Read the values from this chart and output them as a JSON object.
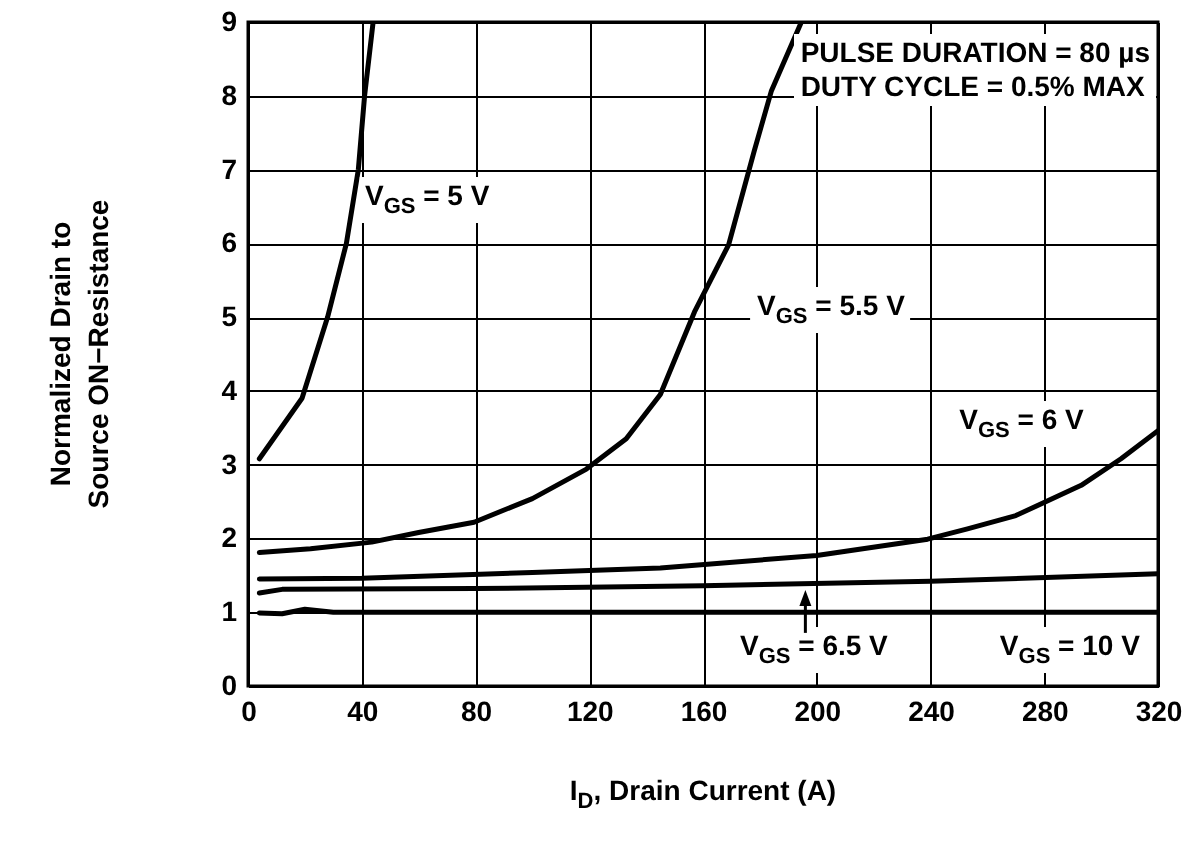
{
  "chart_data": {
    "type": "line",
    "xlabel": "I$_{D}$, Drain Current (A)",
    "ylabel": "Normalized Drain to\nSource ON−Resistance",
    "annotations": [
      "PULSE DURATION = 80 µs\nDUTY CYCLE = 0.5% MAX"
    ],
    "xlim": [
      0,
      320
    ],
    "xticks": [
      0,
      40,
      80,
      120,
      160,
      200,
      240,
      280,
      320
    ],
    "ylim": [
      0,
      9
    ],
    "yticks": [
      0,
      1,
      2,
      3,
      4,
      5,
      6,
      7,
      8,
      9
    ],
    "grid": true,
    "line_style": "solid",
    "series": [
      {
        "name": "V$_{GS}$ = 5 V",
        "color": "#000000",
        "x": [
          4,
          19,
          28,
          34.6,
          38.8,
          41,
          44
        ],
        "values": [
          3.08,
          3.9,
          5.0,
          6.0,
          7.0,
          8.0,
          9.0
        ]
      },
      {
        "name": "V$_{GS}$ = 5.5 V",
        "color": "#000000",
        "x": [
          4,
          22,
          43.5,
          60,
          79.5,
          100,
          119,
          133,
          145,
          157,
          169,
          178,
          184,
          194.6
        ],
        "values": [
          1.81,
          1.86,
          1.95,
          2.08,
          2.22,
          2.54,
          2.94,
          3.35,
          3.95,
          5.07,
          5.98,
          7.25,
          8.06,
          9.0
        ]
      },
      {
        "name": "V$_{GS}$ = 6 V",
        "color": "#000000",
        "x": [
          4,
          40,
          100,
          145,
          200,
          239,
          253,
          270,
          293,
          307,
          320
        ],
        "values": [
          1.45,
          1.46,
          1.54,
          1.6,
          1.77,
          1.99,
          2.13,
          2.31,
          2.72,
          3.08,
          3.46
        ]
      },
      {
        "name": "V$_{GS}$ = 6.5 V",
        "color": "#000000",
        "x": [
          4,
          12,
          80,
          160,
          240,
          320
        ],
        "values": [
          1.26,
          1.31,
          1.32,
          1.36,
          1.42,
          1.52
        ]
      },
      {
        "name": "V$_{GS}$ = 10 V",
        "color": "#000000",
        "x": [
          4,
          12,
          20,
          30,
          320
        ],
        "values": [
          0.99,
          0.98,
          1.04,
          1.0,
          1.0
        ]
      }
    ]
  }
}
